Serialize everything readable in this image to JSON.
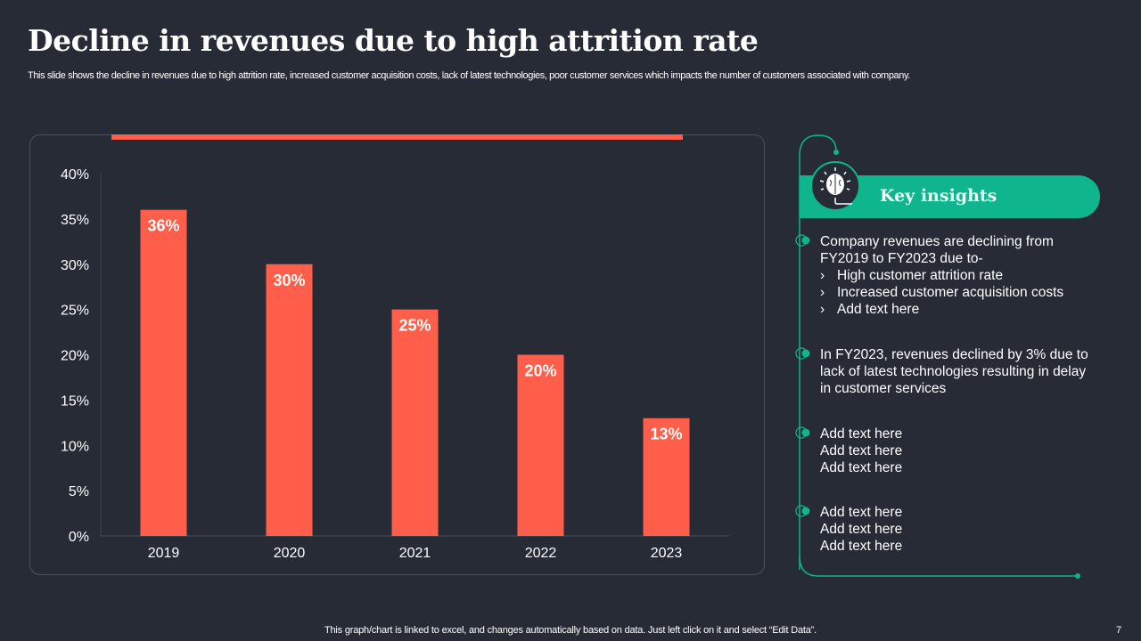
{
  "title": "Decline in revenues due to high attrition rate",
  "subtitle": "This slide shows the decline in revenues due to high attrition rate,  increased customer acquisition costs, lack of latest technologies, poor customer services which impacts the number of customers associated with company.",
  "colors": {
    "background": "#262b35",
    "bar": "#ff5f4a",
    "accent": "#0fb58c"
  },
  "chart_data": {
    "type": "bar",
    "categories": [
      "2019",
      "2020",
      "2021",
      "2022",
      "2023"
    ],
    "values": [
      36,
      30,
      25,
      20,
      13
    ],
    "data_labels": [
      "36%",
      "30%",
      "25%",
      "20%",
      "13%"
    ],
    "yticks": [
      "0%",
      "5%",
      "10%",
      "15%",
      "20%",
      "25%",
      "30%",
      "35%",
      "40%"
    ],
    "ylim": [
      0,
      40
    ],
    "grid": false,
    "title": "",
    "xlabel": "",
    "ylabel": ""
  },
  "insights": {
    "icon": "brain-lightbulb-icon",
    "heading": "Key insights",
    "b1_lines": [
      "Company revenues are declining from",
      "FY2019 to FY2023 due to-"
    ],
    "b1_subs": [
      "High customer attrition rate",
      "Increased customer acquisition costs",
      "Add text here"
    ],
    "sub_marker": "›",
    "b2_lines": [
      "In FY2023, revenues declined by 3% due to",
      "lack of latest technologies resulting in delay",
      "in customer services"
    ],
    "b3_lines": [
      "Add text here",
      "Add text here",
      "Add text here"
    ],
    "b4_lines": [
      "Add text here",
      "Add text here",
      "Add text here"
    ]
  },
  "footer": "This graph/chart is linked to excel,  and changes automatically based on data. Just left click on it and select “Edit Data”.",
  "page_number": "7"
}
